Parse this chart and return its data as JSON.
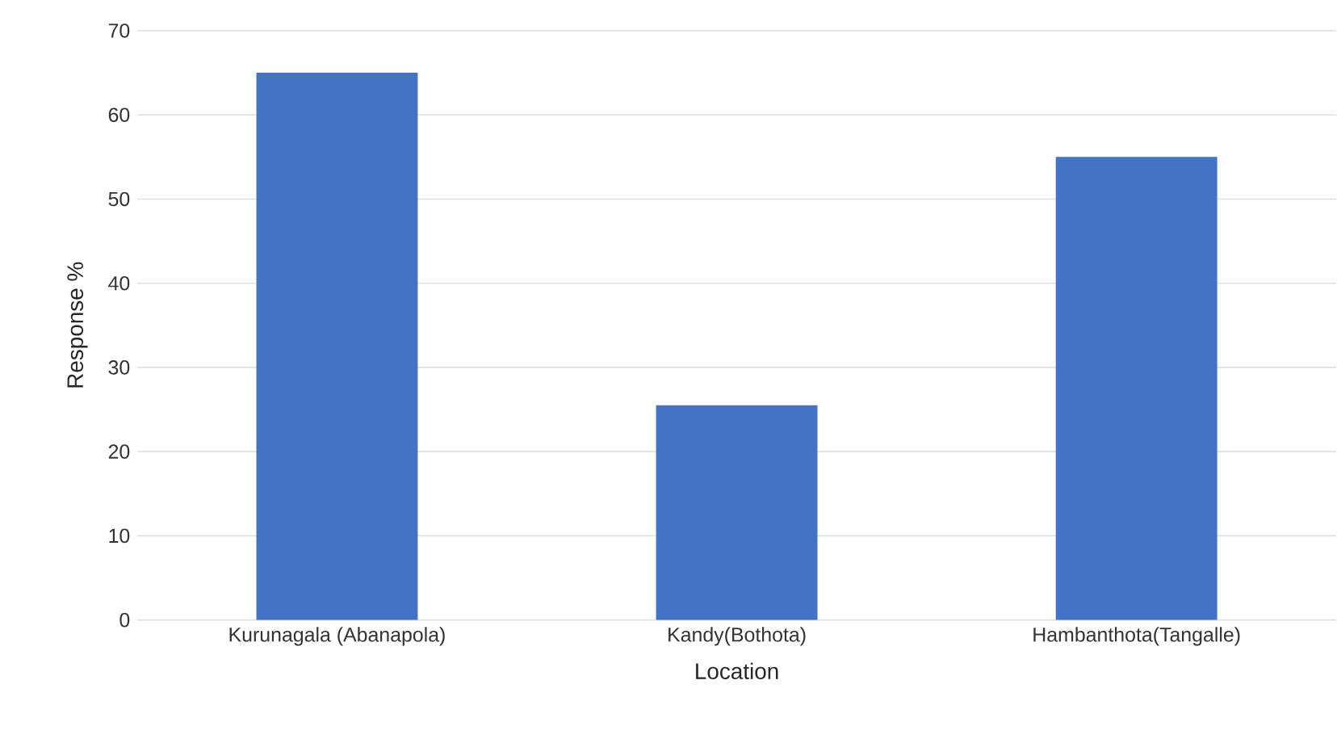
{
  "chart_data": {
    "type": "bar",
    "xlabel": "Location",
    "ylabel": "Response %",
    "categories": [
      "Kurunagala (Abanapola)",
      "Kandy(Bothota)",
      "Hambanthota(Tangalle)"
    ],
    "values": [
      65,
      25.5,
      55
    ],
    "color": "#4472c4",
    "ylim": [
      0,
      70
    ],
    "yticks": [
      0,
      10,
      20,
      30,
      40,
      50,
      60,
      70
    ],
    "grid": "y"
  }
}
